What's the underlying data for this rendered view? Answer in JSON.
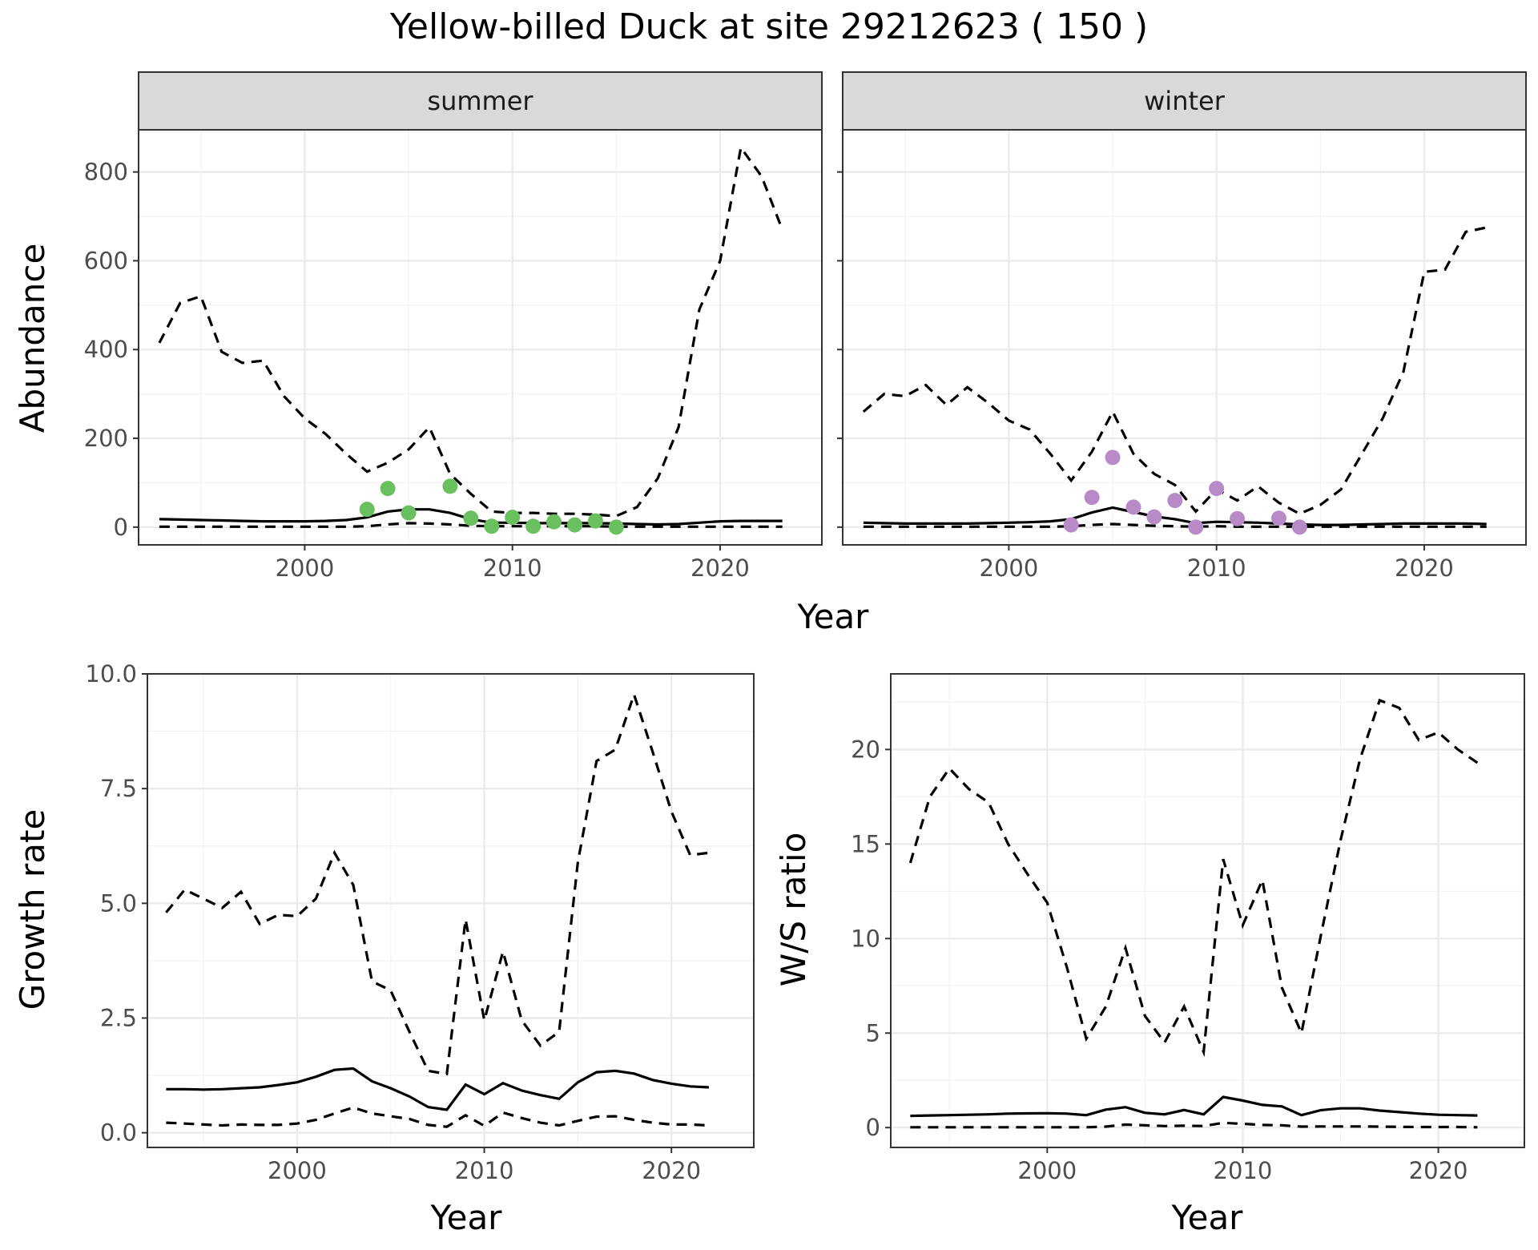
{
  "figure": {
    "title": "Yellow-billed Duck at site 29212623 ( 150 )",
    "abundance_xlabel": "Year"
  },
  "colors": {
    "summer_points": "#6abf5e",
    "winter_points": "#b88bc8",
    "line": "#000000"
  },
  "chart_data": [
    {
      "id": "summer",
      "type": "line",
      "strip_label": "summer",
      "ylabel": "Abundance",
      "xlim": [
        1992,
        2024.9
      ],
      "ylim": [
        -40,
        895
      ],
      "x_ticks": [
        2000,
        2010,
        2020
      ],
      "y_ticks": [
        0,
        200,
        400,
        600,
        800
      ],
      "grid": true,
      "series": [
        {
          "role": "mean",
          "x": [
            1993,
            1994,
            1995,
            1996,
            1997,
            1998,
            1999,
            2000,
            2001,
            2002,
            2003,
            2004,
            2005,
            2006,
            2007,
            2008,
            2009,
            2010,
            2011,
            2012,
            2013,
            2014,
            2015,
            2016,
            2017,
            2018,
            2019,
            2020,
            2021,
            2022,
            2023
          ],
          "values": [
            18,
            17,
            16,
            15,
            14,
            13,
            13,
            13,
            14,
            16,
            22,
            35,
            40,
            40,
            32,
            18,
            10,
            10,
            9,
            9,
            9,
            9,
            8,
            7,
            6,
            7,
            10,
            13,
            14,
            14,
            14
          ]
        },
        {
          "role": "upper",
          "x": [
            1993,
            1994,
            1995,
            1996,
            1997,
            1998,
            1999,
            2000,
            2001,
            2002,
            2003,
            2004,
            2005,
            2006,
            2007,
            2008,
            2009,
            2010,
            2011,
            2012,
            2013,
            2014,
            2015,
            2016,
            2017,
            2018,
            2019,
            2020,
            2021,
            2022,
            2023
          ],
          "values": [
            415,
            505,
            520,
            395,
            370,
            375,
            295,
            245,
            210,
            165,
            125,
            145,
            175,
            225,
            120,
            75,
            35,
            32,
            32,
            30,
            30,
            28,
            25,
            45,
            110,
            225,
            490,
            600,
            855,
            790,
            670
          ]
        },
        {
          "role": "lower",
          "x": [
            1993,
            1994,
            1995,
            1996,
            1997,
            1998,
            1999,
            2000,
            2001,
            2002,
            2003,
            2004,
            2005,
            2006,
            2007,
            2008,
            2009,
            2010,
            2011,
            2012,
            2013,
            2014,
            2015,
            2016,
            2017,
            2018,
            2019,
            2020,
            2021,
            2022,
            2023
          ],
          "values": [
            1,
            1,
            1,
            1,
            1,
            1,
            1,
            1,
            1,
            1,
            2,
            6,
            9,
            8,
            6,
            3,
            2,
            2,
            2,
            2,
            2,
            2,
            1,
            1,
            1,
            1,
            1,
            1,
            1,
            1,
            1
          ]
        }
      ],
      "points": {
        "x": [
          2003,
          2004,
          2005,
          2007,
          2008,
          2009,
          2010,
          2011,
          2012,
          2013,
          2014,
          2015
        ],
        "values": [
          40,
          87,
          32,
          92,
          20,
          2,
          22,
          2,
          12,
          5,
          14,
          0
        ]
      }
    },
    {
      "id": "winter",
      "type": "line",
      "strip_label": "winter",
      "ylabel": "",
      "xlim": [
        1992,
        2024.9
      ],
      "ylim": [
        -40,
        895
      ],
      "x_ticks": [
        2000,
        2010,
        2020
      ],
      "y_ticks": [
        0,
        200,
        400,
        600,
        800
      ],
      "grid": true,
      "series": [
        {
          "role": "mean",
          "x": [
            1993,
            1994,
            1995,
            1996,
            1997,
            1998,
            1999,
            2000,
            2001,
            2002,
            2003,
            2004,
            2005,
            2006,
            2007,
            2008,
            2009,
            2010,
            2011,
            2012,
            2013,
            2014,
            2015,
            2016,
            2017,
            2018,
            2019,
            2020,
            2021,
            2022,
            2023
          ],
          "values": [
            10,
            9,
            8,
            8,
            8,
            8,
            9,
            10,
            11,
            13,
            18,
            33,
            44,
            34,
            24,
            18,
            9,
            12,
            11,
            10,
            8,
            6,
            5,
            5,
            6,
            7,
            8,
            8,
            8,
            8,
            7
          ]
        },
        {
          "role": "upper",
          "x": [
            1993,
            1994,
            1995,
            1996,
            1997,
            1998,
            1999,
            2000,
            2001,
            2002,
            2003,
            2004,
            2005,
            2006,
            2007,
            2008,
            2009,
            2010,
            2011,
            2012,
            2013,
            2014,
            2015,
            2016,
            2017,
            2018,
            2019,
            2020,
            2021,
            2022,
            2023
          ],
          "values": [
            260,
            300,
            295,
            320,
            275,
            315,
            280,
            240,
            220,
            165,
            105,
            170,
            260,
            165,
            120,
            95,
            35,
            85,
            60,
            92,
            55,
            30,
            50,
            85,
            165,
            245,
            350,
            575,
            580,
            665,
            675
          ]
        },
        {
          "role": "lower",
          "x": [
            1993,
            1994,
            1995,
            1996,
            1997,
            1998,
            1999,
            2000,
            2001,
            2002,
            2003,
            2004,
            2005,
            2006,
            2007,
            2008,
            2009,
            2010,
            2011,
            2012,
            2013,
            2014,
            2015,
            2016,
            2017,
            2018,
            2019,
            2020,
            2021,
            2022,
            2023
          ],
          "values": [
            1,
            1,
            1,
            1,
            1,
            1,
            1,
            1,
            1,
            1,
            2,
            5,
            7,
            5,
            3,
            2,
            1,
            2,
            1,
            1,
            1,
            1,
            1,
            1,
            1,
            1,
            1,
            1,
            1,
            1,
            1
          ]
        }
      ],
      "points": {
        "x": [
          2003,
          2004,
          2005,
          2006,
          2007,
          2008,
          2009,
          2010,
          2011,
          2013,
          2014
        ],
        "values": [
          5,
          67,
          157,
          45,
          23,
          60,
          0,
          87,
          19,
          20,
          0
        ]
      }
    },
    {
      "id": "growth",
      "type": "line",
      "xlabel": "Year",
      "ylabel": "Growth rate",
      "xlim": [
        1992,
        2024.4
      ],
      "ylim": [
        -0.32,
        10.0
      ],
      "x_ticks": [
        2000,
        2010,
        2020
      ],
      "y_ticks": [
        0.0,
        2.5,
        5.0,
        7.5,
        10.0
      ],
      "y_tick_labels": [
        "0.0",
        "2.5",
        "5.0",
        "7.5",
        "10.0"
      ],
      "grid": true,
      "series": [
        {
          "role": "mean",
          "x": [
            1993,
            1994,
            1995,
            1996,
            1997,
            1998,
            1999,
            2000,
            2001,
            2002,
            2003,
            2004,
            2005,
            2006,
            2007,
            2008,
            2009,
            2010,
            2011,
            2012,
            2013,
            2014,
            2015,
            2016,
            2017,
            2018,
            2019,
            2020,
            2021,
            2022
          ],
          "values": [
            0.95,
            0.95,
            0.94,
            0.95,
            0.97,
            0.99,
            1.04,
            1.1,
            1.22,
            1.37,
            1.4,
            1.12,
            0.97,
            0.79,
            0.56,
            0.5,
            1.05,
            0.84,
            1.08,
            0.92,
            0.82,
            0.74,
            1.1,
            1.32,
            1.35,
            1.29,
            1.15,
            1.07,
            1.01,
            0.99
          ]
        },
        {
          "role": "upper",
          "x": [
            1993,
            1994,
            1995,
            1996,
            1997,
            1998,
            1999,
            2000,
            2001,
            2002,
            2003,
            2004,
            2005,
            2006,
            2007,
            2008,
            2009,
            2010,
            2011,
            2012,
            2013,
            2014,
            2015,
            2016,
            2017,
            2018,
            2019,
            2020,
            2021,
            2022
          ],
          "values": [
            4.8,
            5.3,
            5.1,
            4.9,
            5.25,
            4.55,
            4.75,
            4.72,
            5.1,
            6.1,
            5.4,
            3.3,
            3.1,
            2.2,
            1.35,
            1.28,
            4.65,
            2.45,
            3.95,
            2.45,
            1.9,
            2.2,
            5.9,
            8.1,
            8.35,
            9.55,
            8.3,
            7.0,
            6.05,
            6.1
          ]
        },
        {
          "role": "lower",
          "x": [
            1993,
            1994,
            1995,
            1996,
            1997,
            1998,
            1999,
            2000,
            2001,
            2002,
            2003,
            2004,
            2005,
            2006,
            2007,
            2008,
            2009,
            2010,
            2011,
            2012,
            2013,
            2014,
            2015,
            2016,
            2017,
            2018,
            2019,
            2020,
            2021,
            2022
          ],
          "values": [
            0.22,
            0.2,
            0.18,
            0.16,
            0.18,
            0.17,
            0.17,
            0.2,
            0.28,
            0.42,
            0.55,
            0.42,
            0.36,
            0.3,
            0.17,
            0.13,
            0.38,
            0.15,
            0.44,
            0.32,
            0.22,
            0.16,
            0.26,
            0.35,
            0.36,
            0.28,
            0.22,
            0.18,
            0.18,
            0.16
          ]
        }
      ]
    },
    {
      "id": "ws_ratio",
      "type": "line",
      "xlabel": "Year",
      "ylabel": "W/S ratio",
      "xlim": [
        1992,
        2024.4
      ],
      "ylim": [
        -1.05,
        24.0
      ],
      "x_ticks": [
        2000,
        2010,
        2020
      ],
      "y_ticks": [
        0,
        5,
        10,
        15,
        20
      ],
      "grid": true,
      "series": [
        {
          "role": "mean",
          "x": [
            1993,
            1994,
            1995,
            1996,
            1997,
            1998,
            1999,
            2000,
            2001,
            2002,
            2003,
            2004,
            2005,
            2006,
            2007,
            2008,
            2009,
            2010,
            2011,
            2012,
            2013,
            2014,
            2015,
            2016,
            2017,
            2018,
            2019,
            2020,
            2021,
            2022
          ],
          "values": [
            0.62,
            0.64,
            0.66,
            0.68,
            0.7,
            0.74,
            0.75,
            0.76,
            0.74,
            0.66,
            0.95,
            1.08,
            0.78,
            0.7,
            0.93,
            0.7,
            1.62,
            1.43,
            1.2,
            1.12,
            0.66,
            0.92,
            1.02,
            1.02,
            0.9,
            0.82,
            0.74,
            0.68,
            0.66,
            0.64
          ]
        },
        {
          "role": "upper",
          "x": [
            1993,
            1994,
            1995,
            1996,
            1997,
            1998,
            1999,
            2000,
            2001,
            2002,
            2003,
            2004,
            2005,
            2006,
            2007,
            2008,
            2009,
            2010,
            2011,
            2012,
            2013,
            2014,
            2015,
            2016,
            2017,
            2018,
            2019,
            2020,
            2021,
            2022
          ],
          "values": [
            14.0,
            17.5,
            19.0,
            17.9,
            17.2,
            15.0,
            13.4,
            11.9,
            8.5,
            4.7,
            6.4,
            9.5,
            5.9,
            4.5,
            6.4,
            4.0,
            14.2,
            10.7,
            13.1,
            7.4,
            5.0,
            10.2,
            15.2,
            19.5,
            22.6,
            22.2,
            20.5,
            20.9,
            20.0,
            19.3
          ]
        },
        {
          "role": "lower",
          "x": [
            1993,
            1994,
            1995,
            1996,
            1997,
            1998,
            1999,
            2000,
            2001,
            2002,
            2003,
            2004,
            2005,
            2006,
            2007,
            2008,
            2009,
            2010,
            2011,
            2012,
            2013,
            2014,
            2015,
            2016,
            2017,
            2018,
            2019,
            2020,
            2021,
            2022
          ],
          "values": [
            0.02,
            0.02,
            0.02,
            0.02,
            0.02,
            0.02,
            0.02,
            0.02,
            0.02,
            0.02,
            0.05,
            0.16,
            0.12,
            0.08,
            0.1,
            0.08,
            0.25,
            0.2,
            0.14,
            0.12,
            0.05,
            0.06,
            0.06,
            0.06,
            0.05,
            0.04,
            0.03,
            0.03,
            0.03,
            0.02
          ]
        }
      ]
    }
  ]
}
